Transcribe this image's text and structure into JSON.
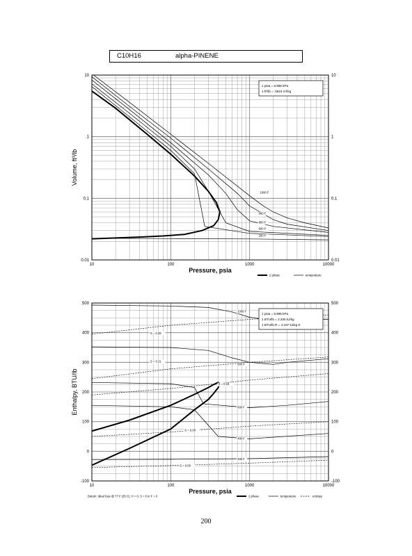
{
  "header": {
    "formula": "C10H16",
    "name": "alpha-PINENE"
  },
  "page_number": "200",
  "chart_data": [
    {
      "type": "line",
      "xlabel": "Pressure,  psia",
      "ylabel": "Volume, ft^3/lb",
      "xscale": "log",
      "yscale": "log",
      "xlim": [
        10,
        10000
      ],
      "ylim": [
        0.01,
        10
      ],
      "grid": true,
      "x_ticks": [
        "10",
        "100",
        "1000",
        "10000"
      ],
      "y_ticks": [
        "10",
        "1",
        "0.1",
        "0.01"
      ],
      "y_ticks_right": [
        "10",
        "1",
        "0.1",
        "0.01"
      ],
      "conversion_note": [
        "1 psia  =  6.895 kPa",
        "1 ft^3/lb  =  .0624 m^3/kg"
      ],
      "legend": [
        "2 phase",
        "temperature"
      ],
      "series": [
        {
          "name": "2 phase",
          "x": [
            10,
            20,
            50,
            100,
            200,
            300,
            380,
            420,
            400,
            350,
            250,
            150,
            80,
            40,
            10
          ],
          "y": [
            5.5,
            2.9,
            1.1,
            0.52,
            0.23,
            0.13,
            0.085,
            0.06,
            0.045,
            0.036,
            0.03,
            0.026,
            0.0245,
            0.0235,
            0.022
          ]
        },
        {
          "name": "1000 F",
          "x": [
            10,
            30,
            100,
            300,
            1000,
            1500,
            2000,
            3000,
            5000,
            10000
          ],
          "y": [
            10.5,
            3.6,
            1.1,
            0.37,
            0.11,
            0.075,
            0.06,
            0.048,
            0.04,
            0.033
          ]
        },
        {
          "name": "900 F",
          "x": [
            10,
            30,
            100,
            300,
            700,
            1000,
            2000,
            3000,
            10000
          ],
          "y": [
            9.4,
            3.1,
            0.95,
            0.3,
            0.12,
            0.075,
            0.045,
            0.038,
            0.03
          ]
        },
        {
          "name": "800 F",
          "x": [
            10,
            30,
            100,
            300,
            500,
            700,
            1000,
            2000,
            10000
          ],
          "y": [
            8.3,
            2.75,
            0.8,
            0.24,
            0.12,
            0.065,
            0.043,
            0.035,
            0.028
          ]
        },
        {
          "name": "600 F",
          "x": [
            10,
            30,
            100,
            200,
            300,
            500,
            1000,
            10000
          ],
          "y": [
            7.2,
            2.4,
            0.7,
            0.3,
            0.13,
            0.04,
            0.029,
            0.025
          ]
        },
        {
          "name": "500 F",
          "x": [
            10,
            30,
            100,
            200,
            270,
            1000,
            10000
          ],
          "y": [
            6.5,
            2.1,
            0.6,
            0.25,
            0.035,
            0.027,
            0.024
          ]
        },
        {
          "name": "200 F",
          "x": [
            10,
            100,
            1000,
            10000
          ],
          "y": [
            0.0225,
            0.0222,
            0.0219,
            0.0212
          ]
        }
      ],
      "curve_labels": [
        {
          "text": "1000 F",
          "x": 1350,
          "y": 0.12
        },
        {
          "text": "900 F",
          "x": 1300,
          "y": 0.055
        },
        {
          "text": "800 F",
          "x": 1300,
          "y": 0.039
        },
        {
          "text": "600 F",
          "x": 1300,
          "y": 0.031
        },
        {
          "text": "200 F",
          "x": 1300,
          "y": 0.024
        }
      ]
    },
    {
      "type": "line",
      "xlabel": "Pressure,  psia",
      "ylabel": "Enthalpy, BTU/lb",
      "xscale": "log",
      "xlim": [
        10,
        10000
      ],
      "ylim": [
        -100,
        500
      ],
      "grid": true,
      "x_ticks": [
        "10",
        "100",
        "1000",
        "10000"
      ],
      "y_ticks": [
        "500",
        "400",
        "300",
        "200",
        "100",
        "0",
        "-100"
      ],
      "y_ticks_right": [
        "500",
        "400",
        "300",
        "200",
        "100",
        "0",
        "-100"
      ],
      "conversion_note": [
        "1 psia  =  6.895 kPa",
        "1 BTU/lb  =  2.326 kJ/kg",
        "1 BTU/lb R  =  4.187 kJ/kg K"
      ],
      "footnote": "Datum: Ideal Gas @ 77 F (25 C),  H = 0,  S = 0 in F = 0",
      "legend": [
        "2 phase",
        "temperature",
        "entropy"
      ],
      "series": [
        {
          "name": "2 phase",
          "x": [
            10,
            30,
            100,
            200,
            300,
            350,
            400,
            420,
            400,
            350,
            300,
            200,
            100,
            30,
            10
          ],
          "y": [
            68,
            105,
            155,
            192,
            215,
            225,
            232,
            228,
            215,
            195,
            175,
            140,
            75,
            10,
            -47
          ]
        },
        {
          "name": "1000 F",
          "x": [
            10,
            100,
            300,
            600,
            1000,
            2000,
            3000,
            10000
          ],
          "y": [
            493,
            490,
            485,
            470,
            452,
            440,
            442,
            445
          ]
        },
        {
          "name": "800 F",
          "x": [
            10,
            100,
            300,
            600,
            1000,
            2000,
            3000,
            10000
          ],
          "y": [
            352,
            350,
            340,
            315,
            300,
            293,
            300,
            312
          ]
        },
        {
          "name": "600 F",
          "x": [
            10,
            100,
            200,
            260,
            1000,
            3000,
            10000
          ],
          "y": [
            232,
            228,
            215,
            160,
            147,
            155,
            168
          ]
        },
        {
          "name": "400 F",
          "x": [
            10,
            100,
            200,
            400,
            1000,
            10000
          ],
          "y": [
            155,
            150,
            140,
            50,
            42,
            60
          ]
        },
        {
          "name": "200 F",
          "x": [
            10,
            100,
            1000,
            10000
          ],
          "y": [
            -28,
            -27,
            -25,
            -18
          ]
        }
      ],
      "entropy_series": [
        {
          "name": "S = 0.28",
          "x": [
            10,
            100,
            1000,
            10000
          ],
          "y": [
            395,
            425,
            445,
            460
          ]
        },
        {
          "name": "S = 0.21",
          "x": [
            10,
            100,
            1000,
            10000
          ],
          "y": [
            245,
            278,
            300,
            318
          ]
        },
        {
          "name": "S = 0.24",
          "x": [
            10,
            100,
            300,
            1000,
            10000
          ],
          "y": [
            190,
            212,
            225,
            240,
            262
          ]
        },
        {
          "name": "S = 0.09",
          "x": [
            10,
            100,
            1000,
            10000
          ],
          "y": [
            50,
            65,
            85,
            100
          ]
        },
        {
          "name": "S = 0.00",
          "x": [
            10,
            100,
            1000,
            10000
          ],
          "y": [
            -55,
            -48,
            -40,
            -30
          ]
        }
      ],
      "curve_labels": [
        {
          "text": "1000 F",
          "x": 700,
          "y": 468
        },
        {
          "text": "S = 0.28",
          "x": 55,
          "y": 395
        },
        {
          "text": "S = 0.21",
          "x": 55,
          "y": 300
        },
        {
          "text": "800 F",
          "x": 700,
          "y": 290
        },
        {
          "text": "S = 0.24",
          "x": 400,
          "y": 223
        },
        {
          "text": "600 F",
          "x": 700,
          "y": 145
        },
        {
          "text": "S = 0.09",
          "x": 150,
          "y": 68
        },
        {
          "text": "400 F",
          "x": 700,
          "y": 40
        },
        {
          "text": "S = 0.00",
          "x": 130,
          "y": -52
        },
        {
          "text": "200 F",
          "x": 700,
          "y": -30
        }
      ]
    }
  ]
}
